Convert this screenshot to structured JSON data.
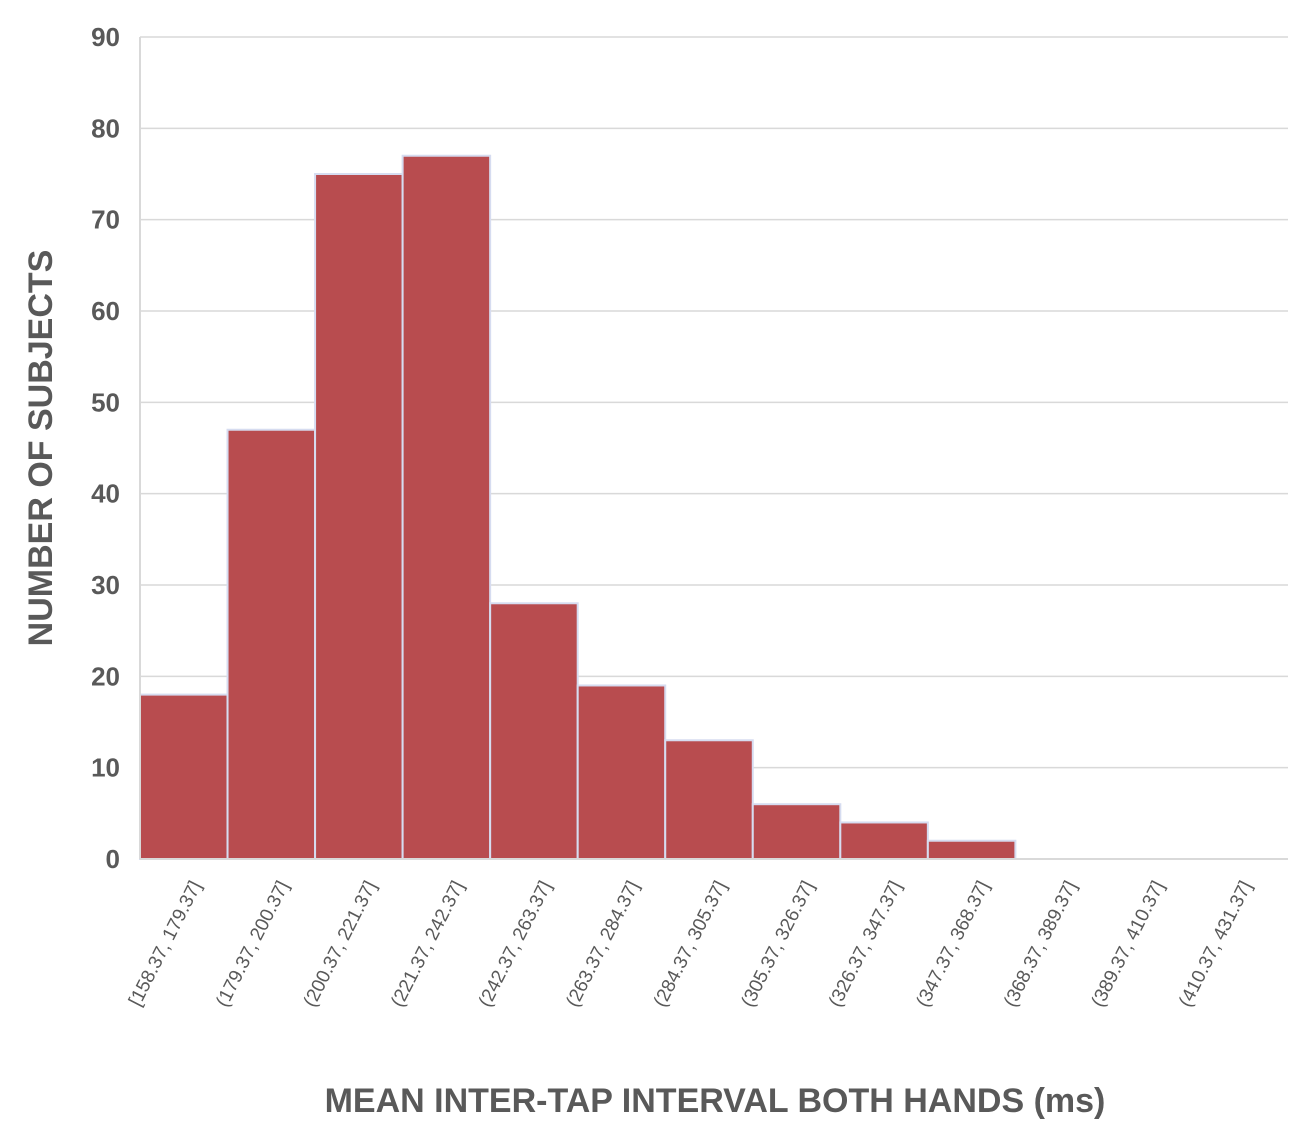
{
  "chart_data": {
    "type": "bar",
    "title": "",
    "xlabel": "MEAN INTER-TAP INTERVAL BOTH HANDS (ms)",
    "ylabel": "NUMBER OF SUBJECTS",
    "categories": [
      "[158.37, 179.37]",
      "(179.37, 200.37]",
      "(200.37, 221.37]",
      "(221.37, 242.37]",
      "(242.37, 263.37]",
      "(263.37, 284.37]",
      "(284.37, 305.37]",
      "(305.37, 326.37]",
      "(326.37, 347.37]",
      "(347.37, 368.37]",
      "(368.37, 389.37]",
      "(389.37, 410.37]",
      "(410.37, 431.37]"
    ],
    "values": [
      18,
      47,
      75,
      77,
      28,
      19,
      13,
      6,
      4,
      2,
      0,
      0,
      0
    ],
    "ylim": [
      0,
      90
    ],
    "yticks": [
      0,
      10,
      20,
      30,
      40,
      50,
      60,
      70,
      80,
      90
    ],
    "grid": true,
    "legend": "none",
    "bar_color": "#b84c4f",
    "bar_edge_color": "#d6dcf0",
    "text_color": "#595959",
    "grid_color": "#d9d9d9"
  }
}
